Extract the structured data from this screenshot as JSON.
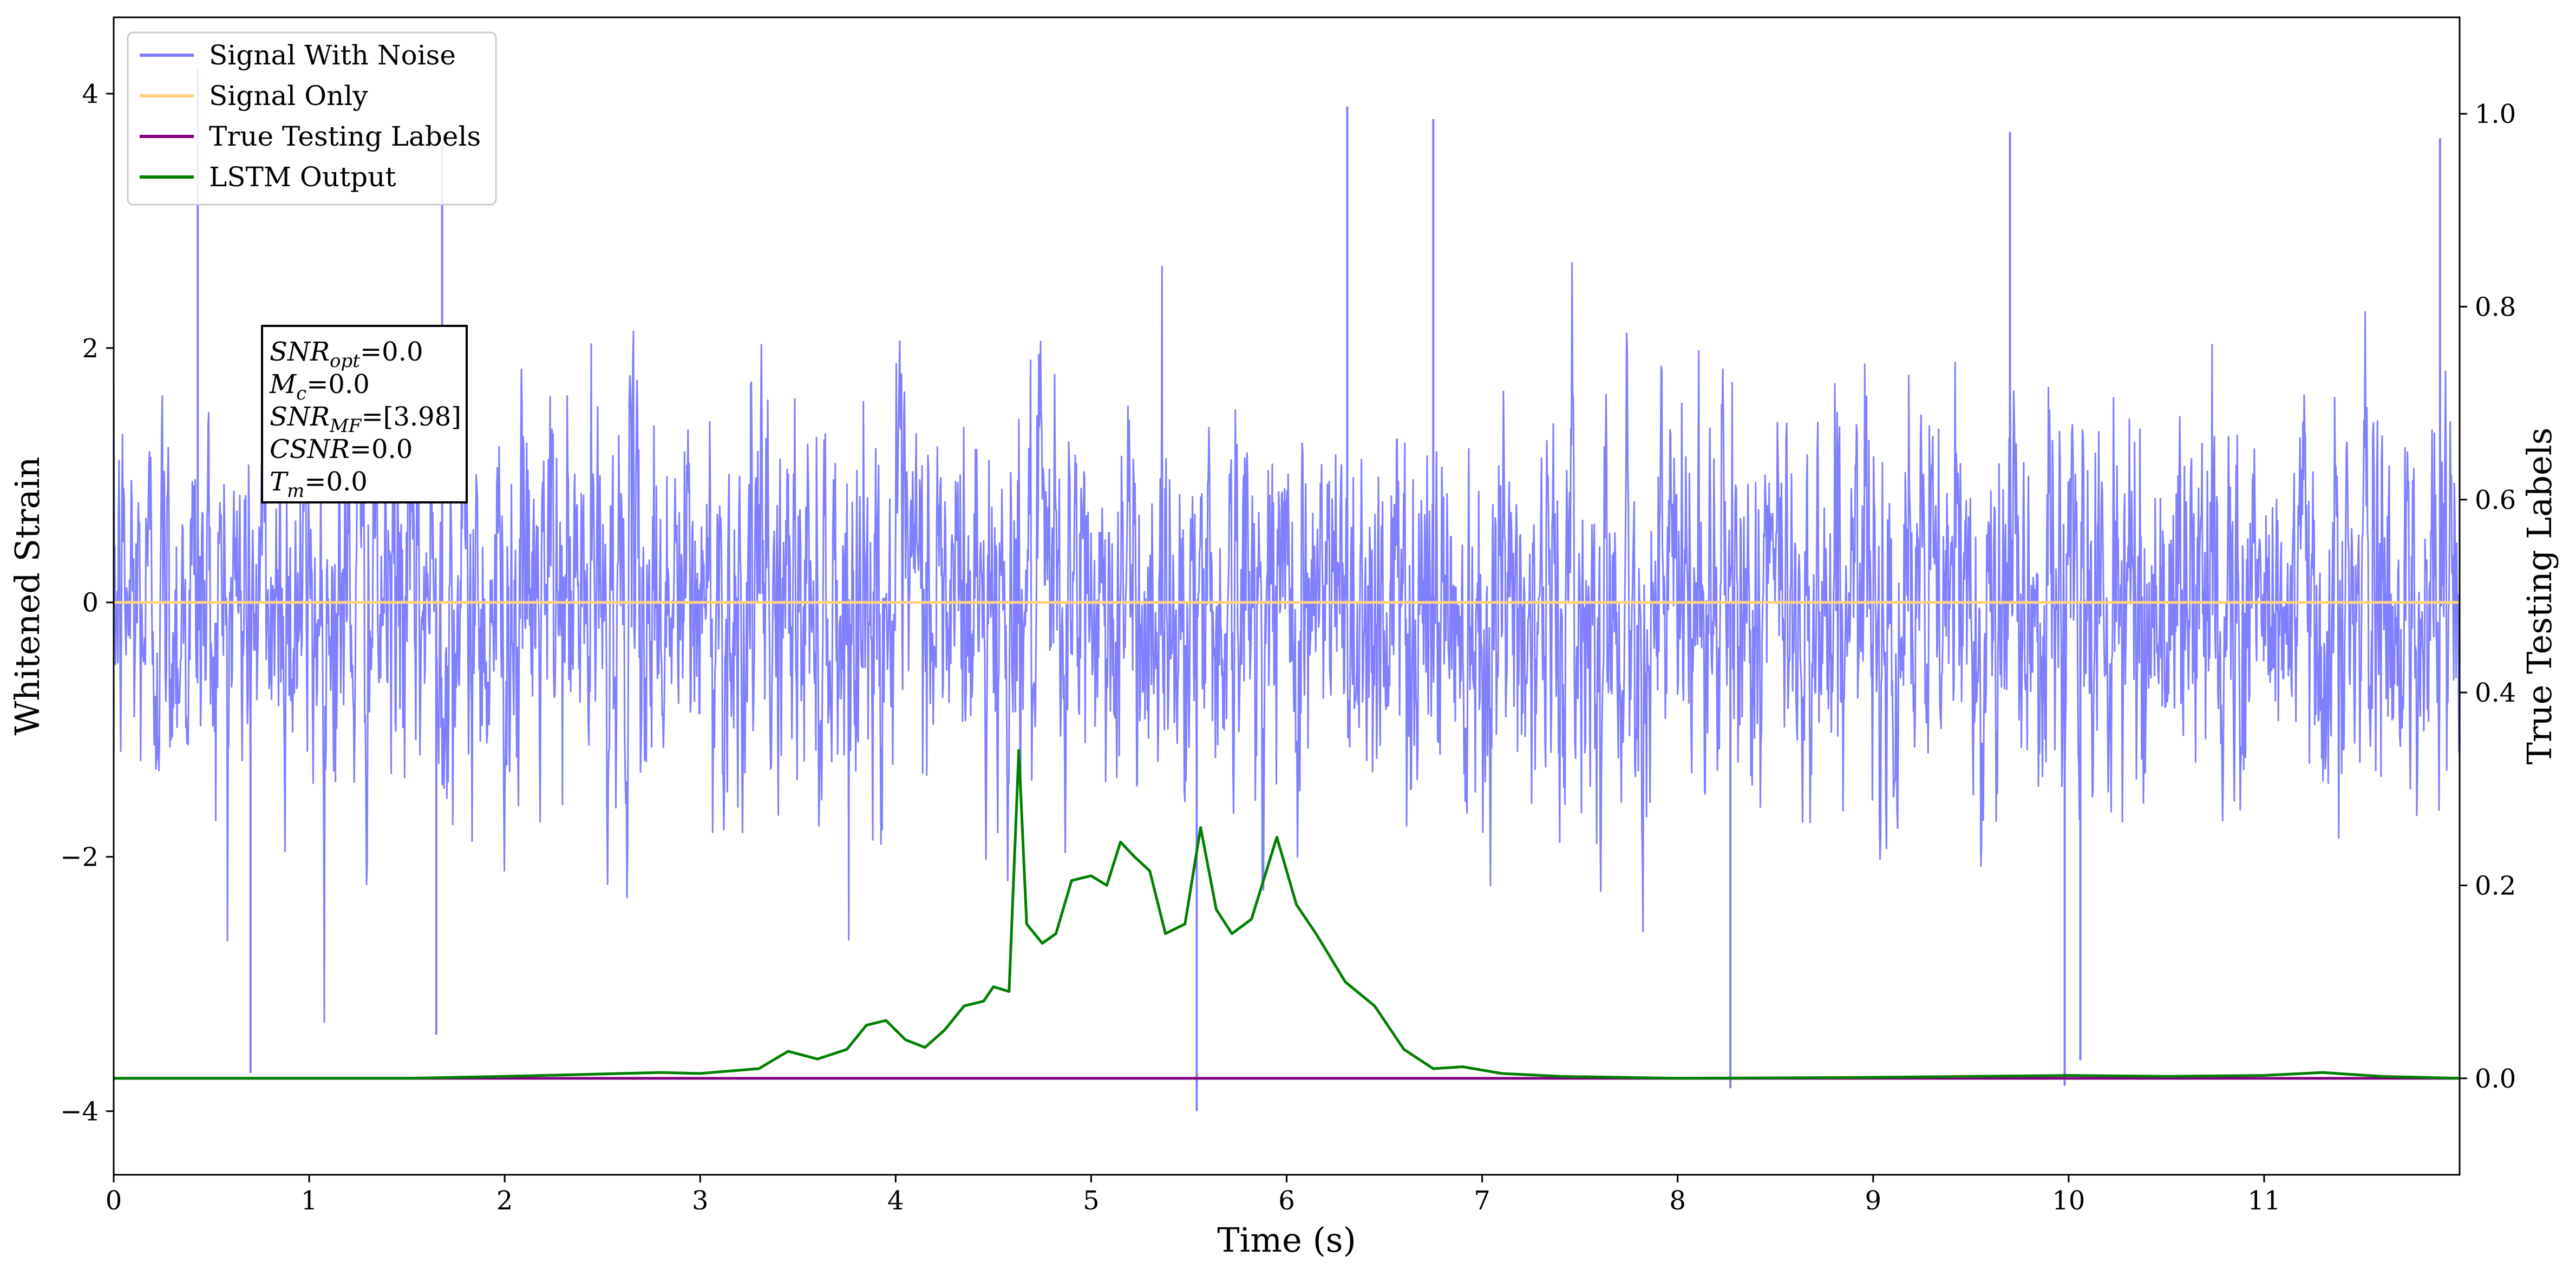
{
  "chart_data": {
    "type": "line",
    "xlabel": "Time (s)",
    "ylabel_left": "Whitened Strain",
    "ylabel_right": "True Testing Labels",
    "xlim": [
      0,
      12
    ],
    "ylim_left": [
      -4.5,
      4.6
    ],
    "ylim_right": [
      -0.1,
      1.1
    ],
    "x_ticks": [
      0,
      1,
      2,
      3,
      4,
      5,
      6,
      7,
      8,
      9,
      10,
      11
    ],
    "x_tick_labels": [
      "0",
      "1",
      "2",
      "3",
      "4",
      "5",
      "6",
      "7",
      "8",
      "9",
      "10",
      "11"
    ],
    "y_ticks_left": [
      4,
      2,
      0,
      -2,
      -4
    ],
    "y_tick_labels_left": [
      "4",
      "2",
      "0",
      "−2",
      "−4"
    ],
    "y_ticks_right": [
      1.0,
      0.8,
      0.6,
      0.4,
      0.2,
      0.0
    ],
    "y_tick_labels_right": [
      "1.0",
      "0.8",
      "0.6",
      "0.4",
      "0.2",
      "0.0"
    ],
    "grid": false,
    "legend_position": "top-left",
    "legend": [
      {
        "label": "Signal With Noise",
        "color": "#7f7fff"
      },
      {
        "label": "Signal Only",
        "color": "#ffd27f"
      },
      {
        "label": "True Testing Labels",
        "color": "#800080"
      },
      {
        "label": "LSTM Output",
        "color": "#008000"
      }
    ],
    "series": [
      {
        "name": "Signal With Noise",
        "axis": "left",
        "color": "#7f7fff",
        "note_values": "dense noise, 12 s, std ≈ 1",
        "samples": 4000,
        "duration": 12,
        "noise_std": 1.0,
        "spikes": [
          {
            "x": 0.43,
            "y": 4.2
          },
          {
            "x": 1.68,
            "y": 3.6
          },
          {
            "x": 6.31,
            "y": 3.9
          },
          {
            "x": 6.75,
            "y": 3.8
          },
          {
            "x": 9.7,
            "y": 3.7
          },
          {
            "x": 11.9,
            "y": 3.65
          },
          {
            "x": 0.7,
            "y": -3.7
          },
          {
            "x": 5.54,
            "y": -4.0
          },
          {
            "x": 8.27,
            "y": -3.82
          },
          {
            "x": 9.98,
            "y": -3.8
          },
          {
            "x": 1.65,
            "y": -3.4
          },
          {
            "x": 10.06,
            "y": -3.6
          }
        ]
      },
      {
        "name": "Signal Only",
        "axis": "left",
        "color": "#ffd27f",
        "x": [
          0,
          12
        ],
        "y": [
          0,
          0
        ]
      },
      {
        "name": "True Testing Labels",
        "axis": "right",
        "color": "#800080",
        "x": [
          0,
          12
        ],
        "y": [
          0,
          0
        ]
      },
      {
        "name": "LSTM Output",
        "axis": "right",
        "color": "#008000",
        "x": [
          0,
          0.5,
          1.0,
          1.5,
          2.0,
          2.4,
          2.8,
          3.0,
          3.3,
          3.45,
          3.6,
          3.75,
          3.85,
          3.95,
          4.05,
          4.15,
          4.25,
          4.35,
          4.45,
          4.5,
          4.58,
          4.63,
          4.67,
          4.75,
          4.82,
          4.9,
          5.0,
          5.08,
          5.15,
          5.22,
          5.3,
          5.38,
          5.48,
          5.56,
          5.64,
          5.72,
          5.82,
          5.95,
          6.05,
          6.15,
          6.3,
          6.45,
          6.6,
          6.75,
          6.9,
          7.1,
          7.4,
          8.0,
          9.0,
          9.5,
          10.0,
          10.5,
          11.0,
          11.3,
          11.6,
          12.0
        ],
        "y": [
          0.0,
          0.0,
          0.0,
          0.0,
          0.002,
          0.004,
          0.006,
          0.005,
          0.01,
          0.028,
          0.02,
          0.03,
          0.055,
          0.06,
          0.04,
          0.032,
          0.05,
          0.075,
          0.08,
          0.095,
          0.09,
          0.34,
          0.16,
          0.14,
          0.15,
          0.205,
          0.21,
          0.2,
          0.245,
          0.23,
          0.215,
          0.15,
          0.16,
          0.26,
          0.175,
          0.15,
          0.165,
          0.25,
          0.18,
          0.15,
          0.1,
          0.075,
          0.03,
          0.01,
          0.012,
          0.005,
          0.002,
          0.0,
          0.001,
          0.002,
          0.003,
          0.002,
          0.003,
          0.006,
          0.002,
          0.0
        ]
      }
    ],
    "annotation": [
      {
        "main": "SNR",
        "sub": "opt",
        "value": "=0.0"
      },
      {
        "main": "M",
        "sub": "c",
        "value": "=0.0"
      },
      {
        "main": "SNR",
        "sub": "MF",
        "value": "=[3.98]"
      },
      {
        "main": "CSNR",
        "sub": "",
        "value": "=0.0"
      },
      {
        "main": "T",
        "sub": "m",
        "value": "=0.0"
      }
    ]
  }
}
